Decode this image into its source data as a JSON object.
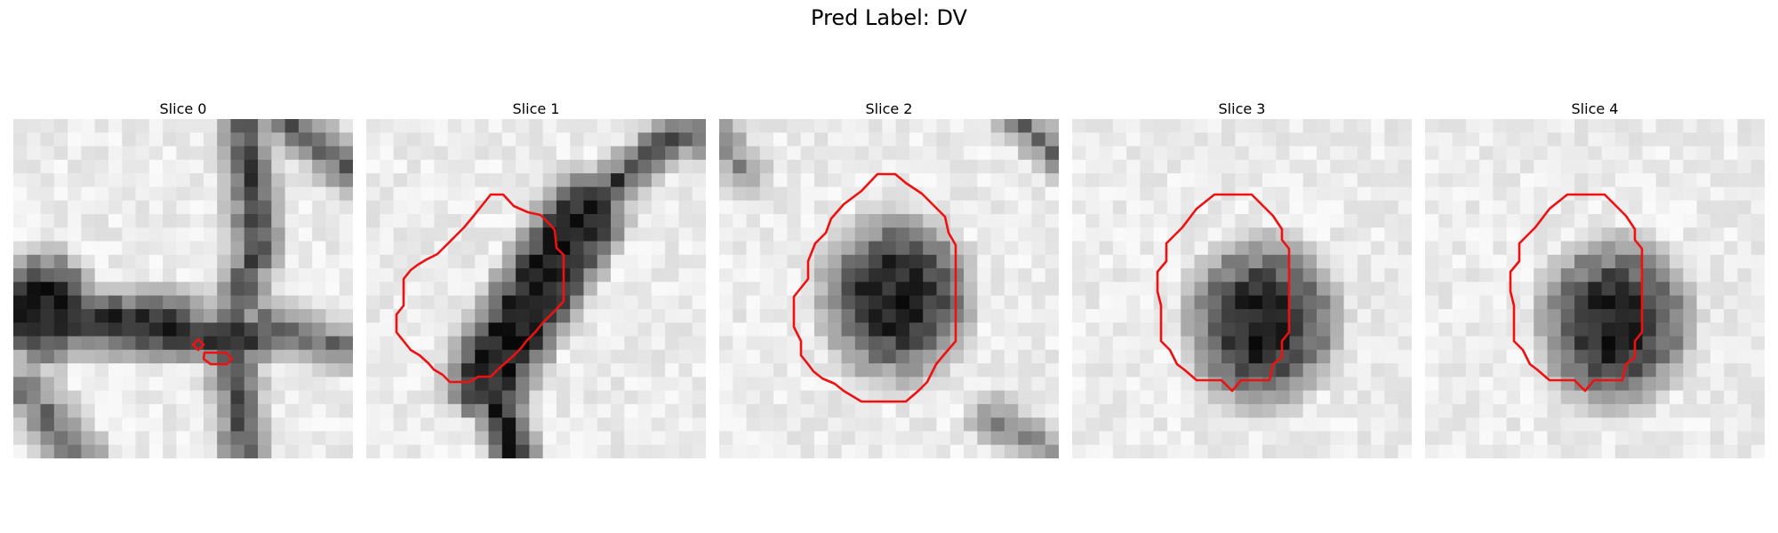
{
  "figure": {
    "title": "Pred Label: DV",
    "colors": {
      "contour": "#ee1111",
      "background": "#ffffff"
    },
    "panels": [
      {
        "title": "Slice 0",
        "kind": "slice0"
      },
      {
        "title": "Slice 1",
        "kind": "slice1"
      },
      {
        "title": "Slice 2",
        "kind": "slice2"
      },
      {
        "title": "Slice 3",
        "kind": "slice3"
      },
      {
        "title": "Slice 4",
        "kind": "slice4"
      }
    ]
  }
}
